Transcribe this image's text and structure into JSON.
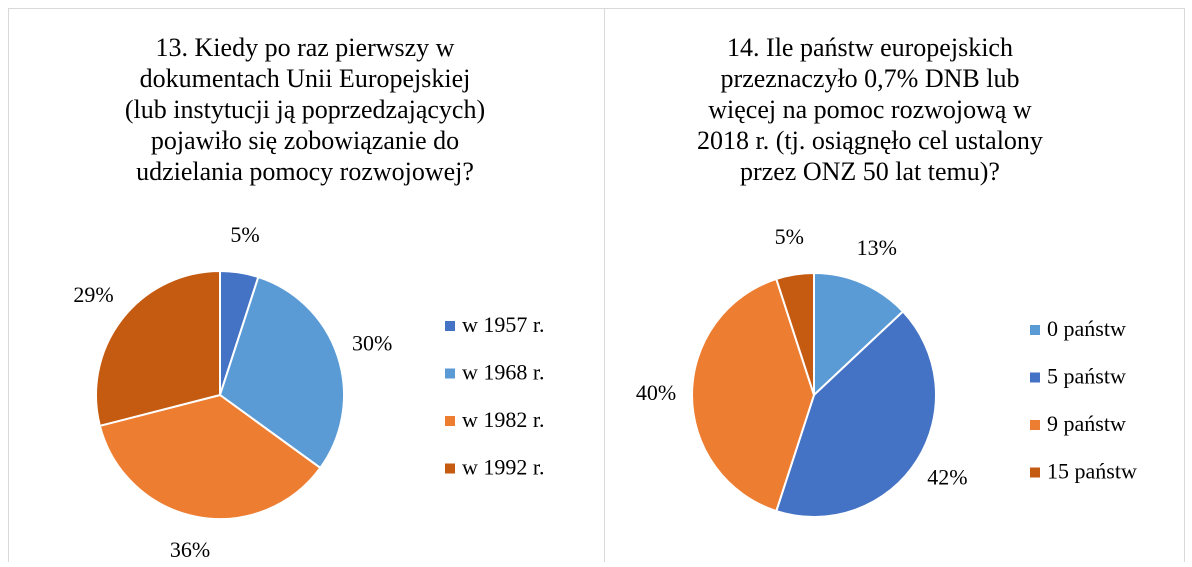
{
  "chart_data": [
    {
      "type": "pie",
      "title": [
        "13. Kiedy po raz pierwszy w",
        "dokumentach Unii Europejskiej",
        "(lub instytucji ją poprzedzających)",
        "pojawiło się zobowiązanie do",
        "udzielania pomocy rozwojowej?"
      ],
      "categories": [
        "w 1957 r.",
        "w 1968 r.",
        "w 1982 r.",
        "w 1992 r."
      ],
      "values": [
        5,
        30,
        36,
        29
      ],
      "value_labels": [
        "5%",
        "30%",
        "36%",
        "29%"
      ],
      "colors": [
        "#4472c4",
        "#5b9bd5",
        "#ed7d31",
        "#c55a11"
      ],
      "legend": "right"
    },
    {
      "type": "pie",
      "title": [
        "14. Ile państw europejskich",
        "przeznaczyło 0,7% DNB lub",
        "więcej na pomoc rozwojową w",
        "2018 r. (tj. osiągnęło cel ustalony",
        "przez ONZ 50 lat temu)?"
      ],
      "categories": [
        "0 państw",
        "5 państw",
        "9 państw",
        "15 państw"
      ],
      "values": [
        13,
        42,
        40,
        5
      ],
      "value_labels": [
        "13%",
        "42%",
        "40%",
        "5%"
      ],
      "colors": [
        "#5b9bd5",
        "#4472c4",
        "#ed7d31",
        "#c55a11"
      ],
      "legend": "right"
    }
  ]
}
